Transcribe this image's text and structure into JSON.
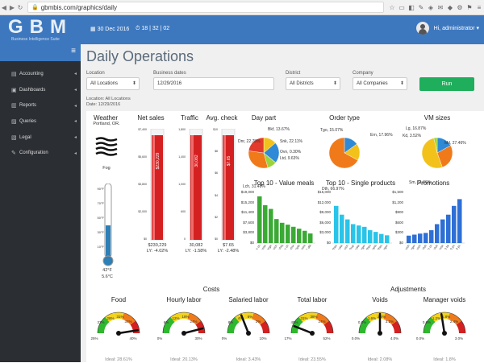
{
  "browser": {
    "url": "gbmbis.com/graphics/daily"
  },
  "app": {
    "logo": "GBM",
    "subtitle": "Business Intelligence Suite",
    "date": "30 Dec 2016",
    "time": "18 | 32 | 02",
    "user": "Hi, administrator"
  },
  "sidebar": {
    "items": [
      {
        "label": "Accounting",
        "icon": "calculator-icon"
      },
      {
        "label": "Dashboards",
        "icon": "dashboard-icon"
      },
      {
        "label": "Reports",
        "icon": "bar-chart-icon"
      },
      {
        "label": "Queries",
        "icon": "query-icon"
      },
      {
        "label": "Legal",
        "icon": "legal-icon"
      },
      {
        "label": "Configuration",
        "icon": "wrench-icon"
      }
    ]
  },
  "page": {
    "title": "Daily Operations"
  },
  "filters": {
    "location": {
      "label": "Location",
      "value": "All Locations"
    },
    "dates": {
      "label": "Business dates",
      "value": "12/29/2016"
    },
    "district": {
      "label": "District",
      "value": "All Districts"
    },
    "company": {
      "label": "Company",
      "value": "All Companies"
    },
    "run_label": "Run"
  },
  "summary": {
    "location": "Location: All Locations",
    "date": "Date: 12/29/2016"
  },
  "weather": {
    "title": "Weather",
    "place": "Portland, OR.",
    "condition": "Fog",
    "temp_f": "42°F",
    "temp_c": "5.6°C",
    "scale": [
      "90°F",
      "70°F",
      "50°F",
      "30°F",
      "10°F"
    ]
  },
  "kpis": [
    {
      "title": "Net sales",
      "value": "$230,229",
      "ly": "LY: -4.02%",
      "bar_label": "$230,229",
      "axis": [
        "$7,400",
        "$5,600",
        "$3,800",
        "$2,000",
        "$0"
      ]
    },
    {
      "title": "Traffic",
      "value": "30,082",
      "ly": "LY: -1.58%",
      "bar_label": "30,082",
      "axis": [
        "1,800",
        "1,400",
        "1,000",
        "600",
        "0"
      ]
    },
    {
      "title": "Avg. check",
      "value": "$7.65",
      "ly": "LY: -2.48%",
      "bar_label": "$7.65",
      "axis": [
        "$10",
        "$8",
        "$6",
        "$4",
        "$2",
        "$0"
      ]
    }
  ],
  "pies": [
    {
      "title": "Day part",
      "slices": [
        {
          "label": "Bkf, 13.67%",
          "value": 13.67,
          "color": "#f2c21b"
        },
        {
          "label": "Snk, 22.11%",
          "value": 22.11,
          "color": "#2e89d6"
        },
        {
          "label": "Ovn, 0.30%",
          "value": 0.3,
          "color": "#7a3f9e"
        },
        {
          "label": "Ltd, 9.63%",
          "value": 9.63,
          "color": "#9bd33a"
        },
        {
          "label": "Lch, 31.48%",
          "value": 31.48,
          "color": "#f07a1a"
        },
        {
          "label": "Dnr, 22.78%",
          "value": 22.78,
          "color": "#e23b2b"
        }
      ]
    },
    {
      "title": "Order type",
      "slices": [
        {
          "label": "Tgo, 15.07%",
          "value": 15.07,
          "color": "#2e89d6"
        },
        {
          "label": "Ern, 17.96%",
          "value": 17.96,
          "color": "#f2c21b"
        },
        {
          "label": "Dth, 66.97%",
          "value": 66.97,
          "color": "#f07a1a"
        }
      ]
    },
    {
      "title": "VM sizes",
      "slices": [
        {
          "label": "Lg, 16.87%",
          "value": 16.87,
          "color": "#2e89d6"
        },
        {
          "label": "Md, 27.46%",
          "value": 27.46,
          "color": "#f07a1a"
        },
        {
          "label": "Sm, 51.66%",
          "value": 51.66,
          "color": "#f2c21b"
        },
        {
          "label": "Kd, 3.52%",
          "value": 3.52,
          "color": "#9bd33a"
        }
      ]
    }
  ],
  "bars": [
    {
      "title": "Top 10 - Value meals",
      "color": "#3aaa35",
      "axis": [
        "$19,000",
        "$15,200",
        "$11,400",
        "$7,600",
        "$3,800",
        "$0"
      ],
      "max": 19000,
      "values": [
        17500,
        14200,
        12800,
        9000,
        7600,
        6900,
        6100,
        5400,
        4600,
        3600
      ],
      "labels": [
        "vm 1 mini ch",
        "vm mini & cheese",
        "vm 3 large",
        "vm chix sandwich",
        "vm bkfst-chiq",
        "vm 2 pc ch",
        "vm spicy chix",
        "vm triple",
        "vm 1 mini",
        "vm 2 dbl"
      ]
    },
    {
      "title": "Top 10 - Single products",
      "color": "#29c4e8",
      "axis": [
        "$15,000",
        "$12,000",
        "$9,000",
        "$6,000",
        "$3,000",
        "$0"
      ],
      "max": 15000,
      "values": [
        11000,
        8400,
        7000,
        5600,
        5200,
        4800,
        3800,
        3300,
        2700,
        2300
      ],
      "labels": [
        "fries",
        "sm coke",
        "ch sandwich",
        "ketchup",
        "kdd coke",
        "burger",
        "sm fries",
        "nuggets",
        "bk fries",
        "chz burger"
      ]
    },
    {
      "title": "Promotions",
      "color": "#2e6fd6",
      "axis": [
        "$1,500",
        "$1,200",
        "$900",
        "$600",
        "$300",
        "$0"
      ],
      "max": 1500,
      "values": [
        220,
        250,
        280,
        300,
        380,
        560,
        700,
        840,
        1100,
        1300
      ],
      "labels": [
        "vm chick sandwich",
        "vm 2 hm burger",
        "total sandwich",
        "vm chix club",
        "vm chip ch",
        "nugget club",
        "total cheese",
        "kids 3 bk",
        "vm 6 pc",
        "ch burger 4 pc"
      ]
    }
  ],
  "sections": {
    "costs": "Costs",
    "adjustments": "Adjustments"
  },
  "gauges": [
    {
      "title": "Food",
      "ticks": [
        "28%",
        "31%",
        "34%",
        "37%",
        "25%",
        "40%"
      ],
      "ideal": "Ideal: 28.61%",
      "needle": 0.95
    },
    {
      "title": "Hourly labor",
      "ticks": [
        "12%",
        "18%",
        "24%",
        "6%",
        "0%",
        "30%"
      ],
      "ideal": "Ideal: 20.13%",
      "needle": 0.92
    },
    {
      "title": "Salaried labor",
      "ticks": [
        "4%",
        "6%",
        "2%",
        "8%",
        "0%",
        "10%"
      ],
      "ideal": "Ideal: 3.43%",
      "needle": 0.38
    },
    {
      "title": "Total labor",
      "ticks": [
        "31%",
        "38%",
        "24%",
        "45%",
        "17%",
        "52%"
      ],
      "ideal": "Ideal: 23.55%",
      "needle": 0.12
    },
    {
      "title": "Voids",
      "ticks": [
        "1.6%",
        "2.4%",
        "3.2%",
        "0.8%",
        "0.0%",
        "4.0%"
      ],
      "ideal": "Ideal: 2.08%",
      "needle": 0.5
    },
    {
      "title": "Manager voids",
      "ticks": [
        "1.2%",
        "1.8%",
        "2.4%",
        "0.6%",
        "0.0%",
        "3.0%"
      ],
      "ideal": "Ideal: 1.8%",
      "needle": 0.45
    }
  ],
  "chart_data": [
    {
      "type": "bar",
      "title": "Net sales",
      "categories": [
        "Net sales"
      ],
      "values": [
        230229
      ]
    },
    {
      "type": "bar",
      "title": "Traffic",
      "categories": [
        "Traffic"
      ],
      "values": [
        30082
      ]
    },
    {
      "type": "bar",
      "title": "Avg. check",
      "categories": [
        "Avg. check"
      ],
      "values": [
        7.65
      ]
    },
    {
      "type": "pie",
      "title": "Day part",
      "categories": [
        "Bkf",
        "Snk",
        "Ovn",
        "Ltd",
        "Lch",
        "Dnr"
      ],
      "values": [
        13.67,
        22.11,
        0.3,
        9.63,
        31.48,
        22.78
      ]
    },
    {
      "type": "pie",
      "title": "Order type",
      "categories": [
        "Tgo",
        "Ern",
        "Dth"
      ],
      "values": [
        15.07,
        17.96,
        66.97
      ]
    },
    {
      "type": "pie",
      "title": "VM sizes",
      "categories": [
        "Lg",
        "Md",
        "Sm",
        "Kd"
      ],
      "values": [
        16.87,
        27.46,
        51.66,
        3.52
      ]
    },
    {
      "type": "bar",
      "title": "Top 10 - Value meals",
      "values": [
        17500,
        14200,
        12800,
        9000,
        7600,
        6900,
        6100,
        5400,
        4600,
        3600
      ],
      "ylim": [
        0,
        19000
      ]
    },
    {
      "type": "bar",
      "title": "Top 10 - Single products",
      "values": [
        11000,
        8400,
        7000,
        5600,
        5200,
        4800,
        3800,
        3300,
        2700,
        2300
      ],
      "ylim": [
        0,
        15000
      ]
    },
    {
      "type": "bar",
      "title": "Promotions",
      "values": [
        220,
        250,
        280,
        300,
        380,
        560,
        700,
        840,
        1100,
        1300
      ],
      "ylim": [
        0,
        1500
      ]
    }
  ]
}
